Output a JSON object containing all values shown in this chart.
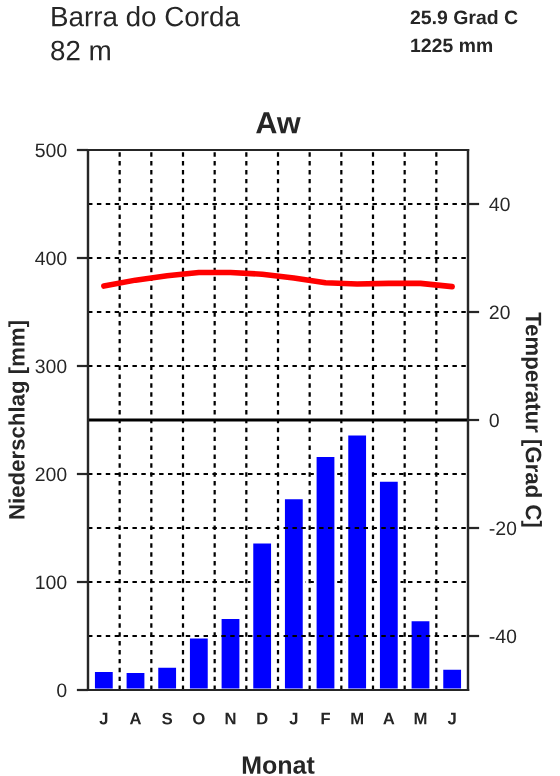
{
  "chart_data": {
    "type": "bar",
    "title": "Aw",
    "xlabel": "Monat",
    "ylabel": "Niederschlag [mm]",
    "y2label": "Temperatur [Grad C]",
    "annotations": [
      "Barra do Corda",
      "82 m",
      "25.9 Grad C",
      "1225 mm"
    ],
    "categories": [
      "J",
      "A",
      "S",
      "O",
      "N",
      "D",
      "J",
      "F",
      "M",
      "A",
      "M",
      "J"
    ],
    "series": [
      {
        "color": "#0000ff",
        "values": [
          18,
          17,
          22,
          49,
          67,
          137,
          178,
          217,
          237,
          194,
          65,
          20
        ]
      },
      {
        "type": "line",
        "axis": "y2",
        "color": "#ff0000",
        "values": [
          24.8,
          25.9,
          26.7,
          27.3,
          27.3,
          27.0,
          26.3,
          25.4,
          25.2,
          25.3,
          25.3,
          24.7
        ]
      }
    ],
    "ylim": [
      0,
      500
    ],
    "yticks": [
      0,
      100,
      200,
      300,
      400,
      500
    ],
    "y2lim": [
      -50,
      50
    ],
    "y2ticks": [
      -40,
      -20,
      0,
      20,
      40
    ],
    "ref_lines": [
      {
        "axis": "y2",
        "value": 0,
        "color": "#000000",
        "line_style": "solid"
      }
    ],
    "grid": true
  }
}
